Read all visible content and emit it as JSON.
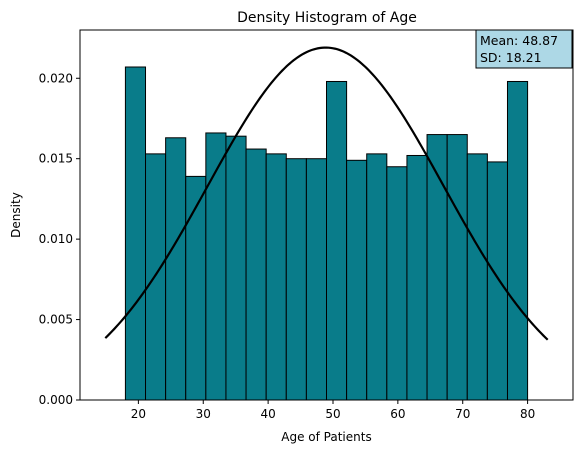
{
  "chart_data": {
    "type": "bar",
    "title": "Density Histogram of Age",
    "xlabel": "Age of Patients",
    "ylabel": "Density",
    "xlim": [
      11,
      87
    ],
    "ylim": [
      0,
      0.023
    ],
    "xticks": [
      20,
      30,
      40,
      50,
      60,
      70,
      80
    ],
    "yticks": [
      0.0,
      0.005,
      0.01,
      0.015,
      0.02
    ],
    "ytick_labels": [
      "0.000",
      "0.005",
      "0.010",
      "0.015",
      "0.020"
    ],
    "bin_edges": [
      18,
      21.1,
      24.2,
      27.3,
      30.4,
      33.5,
      36.6,
      39.7,
      42.8,
      45.9,
      49.0,
      52.1,
      55.2,
      58.3,
      61.4,
      64.5,
      67.6,
      70.7,
      73.8,
      76.9,
      80
    ],
    "values": [
      0.0207,
      0.0153,
      0.0163,
      0.0139,
      0.0166,
      0.0164,
      0.0156,
      0.0153,
      0.015,
      0.015,
      0.0198,
      0.0149,
      0.0153,
      0.0145,
      0.0152,
      0.0165,
      0.0165,
      0.0153,
      0.0148,
      0.0198
    ],
    "bar_color": "#097c8a",
    "bar_edge_color": "#000000",
    "normal_curve": {
      "mean": 48.87,
      "sd": 18.21,
      "x_start": 14.9,
      "x_end": 83.1,
      "color": "#000000"
    },
    "annotation": {
      "mean_text": "Mean: 48.87",
      "sd_text": "SD: 18.21",
      "background": "#add8e6",
      "placement": "top-right"
    },
    "grid": false,
    "legend": "none"
  }
}
